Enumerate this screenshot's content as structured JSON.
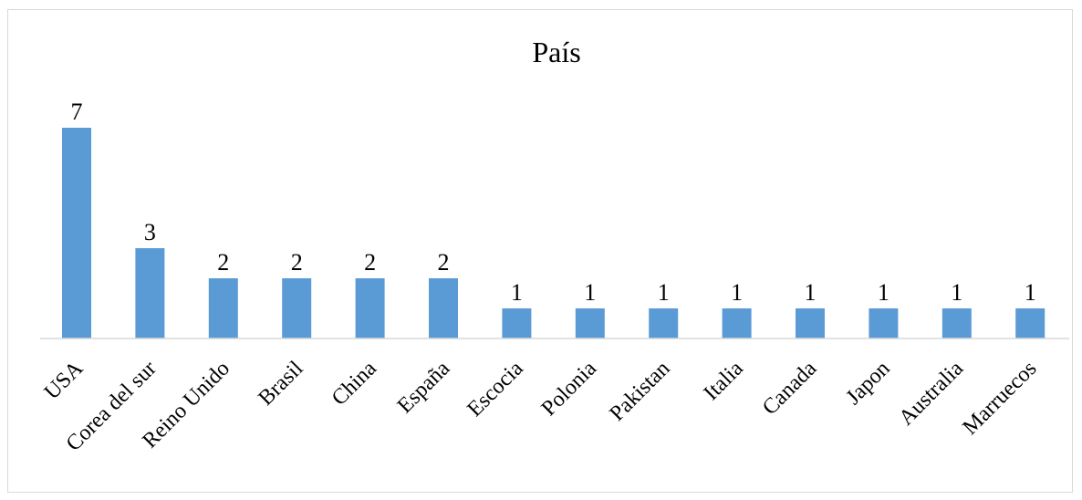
{
  "chart_data": {
    "type": "bar",
    "title": "País",
    "categories": [
      "USA",
      "Corea del sur",
      "Reino Unido",
      "Brasil",
      "China",
      "España",
      "Escocia",
      "Polonia",
      "Pakistan",
      "Italia",
      "Canada",
      "Japon",
      "Australia",
      "Marruecos"
    ],
    "values": [
      7,
      3,
      2,
      2,
      2,
      2,
      1,
      1,
      1,
      1,
      1,
      1,
      1,
      1
    ],
    "xlabel": "",
    "ylabel": "",
    "ylim": [
      0,
      8
    ],
    "grid": false,
    "legend": "none",
    "data_labels": true,
    "bar_color": "#5b9bd5"
  }
}
